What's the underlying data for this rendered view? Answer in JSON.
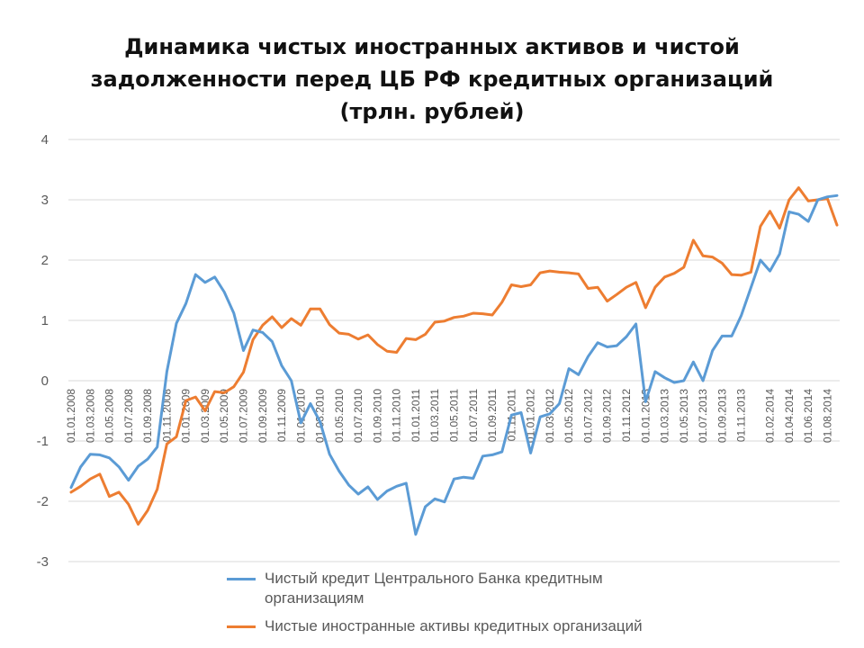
{
  "chart_data": {
    "type": "line",
    "title_lines": [
      "Динамика чистых иностранных активов и чистой",
      "задолженности перед ЦБ РФ кредитных организаций",
      "(трлн. рублей)"
    ],
    "ylim": [
      -3,
      4
    ],
    "yticks": [
      "4",
      "3",
      "2",
      "1",
      "0",
      "-1",
      "-2",
      "-3"
    ],
    "grid": true,
    "legend_position": "bottom",
    "x": [
      "01.01.2008",
      "01.02.2008",
      "01.03.2008",
      "01.04.2008",
      "01.05.2008",
      "01.06.2008",
      "01.07.2008",
      "01.08.2008",
      "01.09.2008",
      "01.10.2008",
      "01.11.2008",
      "01.12.2008",
      "01.01.2009",
      "01.02.2009",
      "01.03.2009",
      "01.04.2009",
      "01.05.2009",
      "01.06.2009",
      "01.07.2009",
      "01.08.2009",
      "01.09.2009",
      "01.10.2009",
      "01.11.2009",
      "01.12.2009",
      "01.01.2010",
      "01.02.2010",
      "01.03.2010",
      "01.04.2010",
      "01.05.2010",
      "01.06.2010",
      "01.07.2010",
      "01.08.2010",
      "01.09.2010",
      "01.10.2010",
      "01.11.2010",
      "01.12.2010",
      "01.01.2011",
      "01.02.2011",
      "01.03.2011",
      "01.04.2011",
      "01.05.2011",
      "01.06.2011",
      "01.07.2011",
      "01.08.2011",
      "01.09.2011",
      "01.10.2011",
      "01.11.2011",
      "01.12.2011",
      "01.01.2012",
      "01.02.2012",
      "01.03.2012",
      "01.04.2012",
      "01.05.2012",
      "01.06.2012",
      "01.07.2012",
      "01.08.2012",
      "01.09.2012",
      "01.10.2012",
      "01.11.2012",
      "01.12.2012",
      "01.01.2013",
      "01.02.2013",
      "01.03.2013",
      "01.04.2013",
      "01.05.2013",
      "01.06.2013",
      "01.07.2013",
      "01.08.2013",
      "01.09.2013",
      "01.10.2013",
      "01.11.2013",
      "01.12.2013",
      "01.01.2014",
      "01.02.2014",
      "01.03.2014",
      "01.04.2014",
      "01.05.2014",
      "01.06.2014",
      "01.07.2014",
      "01.08.2014",
      "01.09.2014"
    ],
    "x_tick_labels": [
      "01.01.2008",
      "01.03.2008",
      "01.05.2008",
      "01.07.2008",
      "01.09.2008",
      "01.11.2008",
      "01.01.2009",
      "01.03.2009",
      "01.05.2009",
      "01.07.2009",
      "01.09.2009",
      "01.11.2009",
      "01.01.2010",
      "01.03.2010",
      "01.05.2010",
      "01.07.2010",
      "01.09.2010",
      "01.11.2010",
      "01.01.2011",
      "01.03.2011",
      "01.05.2011",
      "01.07.2011",
      "01.09.2011",
      "01.11.2011",
      "01.01.2012",
      "01.03.2012",
      "01.05.2012",
      "01.07.2012",
      "01.09.2012",
      "01.11.2012",
      "01.01.2013",
      "01.03.2013",
      "01.05.2013",
      "01.07.2013",
      "01.09.2013",
      "01.11.2013",
      "01.02.2014",
      "01.04.2014",
      "01.06.2014",
      "01.08.2014"
    ],
    "series": [
      {
        "name": "Чистый кредит Центрального Банка кредитным организациям",
        "legend_lines": [
          "Чистый кредит Центрального Банка кредитным",
          "организациям"
        ],
        "color": "#5B9BD5",
        "values": [
          -1.77,
          -1.43,
          -1.22,
          -1.23,
          -1.28,
          -1.43,
          -1.65,
          -1.42,
          -1.3,
          -1.1,
          0.15,
          0.95,
          1.28,
          1.76,
          1.63,
          1.72,
          1.47,
          1.12,
          0.5,
          0.84,
          0.8,
          0.65,
          0.25,
          0.0,
          -0.7,
          -0.38,
          -0.68,
          -1.22,
          -1.5,
          -1.73,
          -1.88,
          -1.76,
          -1.97,
          -1.83,
          -1.75,
          -1.7,
          -2.55,
          -2.09,
          -1.96,
          -2.01,
          -1.63,
          -1.6,
          -1.62,
          -1.25,
          -1.23,
          -1.18,
          -0.57,
          -0.53,
          -1.2,
          -0.6,
          -0.55,
          -0.38,
          0.2,
          0.1,
          0.4,
          0.63,
          0.56,
          0.58,
          0.73,
          0.94,
          -0.35,
          0.15,
          0.05,
          -0.03,
          0.0,
          0.31,
          0.0,
          0.5,
          0.74,
          0.74,
          1.08,
          1.54,
          2.0,
          1.82,
          2.1,
          2.8,
          2.76,
          2.64,
          3.0,
          3.05,
          3.07
        ]
      },
      {
        "name": "Чистые иностранные активы кредитных организаций",
        "legend_lines": [
          "Чистые иностранные активы кредитных организаций"
        ],
        "color": "#ED7D31",
        "values": [
          -1.85,
          -1.75,
          -1.63,
          -1.55,
          -1.92,
          -1.85,
          -2.05,
          -2.38,
          -2.15,
          -1.8,
          -1.05,
          -0.93,
          -0.33,
          -0.27,
          -0.5,
          -0.18,
          -0.2,
          -0.1,
          0.14,
          0.68,
          0.92,
          1.06,
          0.88,
          1.03,
          0.92,
          1.19,
          1.19,
          0.93,
          0.79,
          0.77,
          0.69,
          0.76,
          0.6,
          0.49,
          0.47,
          0.7,
          0.68,
          0.77,
          0.97,
          0.99,
          1.05,
          1.07,
          1.12,
          1.11,
          1.09,
          1.3,
          1.59,
          1.56,
          1.59,
          1.79,
          1.82,
          1.8,
          1.79,
          1.77,
          1.53,
          1.55,
          1.32,
          1.43,
          1.55,
          1.63,
          1.21,
          1.55,
          1.72,
          1.78,
          1.88,
          2.33,
          2.07,
          2.05,
          1.95,
          1.76,
          1.75,
          1.8,
          2.56,
          2.81,
          2.53,
          3.0,
          3.2,
          2.98,
          3.0,
          3.02,
          2.58
        ]
      }
    ]
  }
}
